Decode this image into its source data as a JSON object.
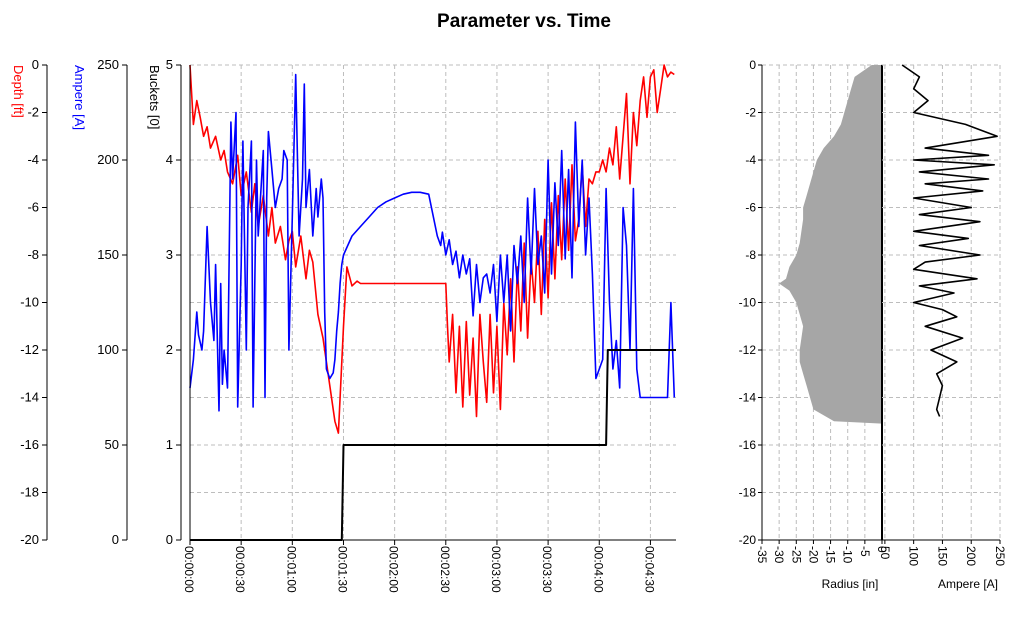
{
  "title": "Parameter vs. Time",
  "colors": {
    "depth": "#ff0000",
    "ampere": "#0000ff",
    "buckets": "#000000",
    "grid": "#bdbdbd",
    "radius_fill": "#a6a6a6"
  },
  "chart_data": [
    {
      "type": "line",
      "title": "Parameter vs. Time",
      "x_tick_labels": [
        "00:00:00",
        "00:00:30",
        "00:01:00",
        "00:01:30",
        "00:02:00",
        "00:02:30",
        "00:03:00",
        "00:03:30",
        "00:04:00",
        "00:04:30"
      ],
      "xlim_seconds": [
        0,
        285
      ],
      "grid": true,
      "axes": [
        {
          "id": "depth",
          "label": "Depth [ft]",
          "ylim": [
            -20,
            0
          ],
          "ticks": [
            "0",
            "-2",
            "-4",
            "-6",
            "-8",
            "-10",
            "-12",
            "-14",
            "-16",
            "-18",
            "-20"
          ]
        },
        {
          "id": "ampere",
          "label": "Ampere [A]",
          "ylim": [
            0,
            250
          ],
          "ticks": [
            "250",
            "200",
            "150",
            "100",
            "50",
            "0"
          ]
        },
        {
          "id": "buckets",
          "label": "Buckets [0]",
          "ylim": [
            0,
            5
          ],
          "ticks": [
            "5",
            "4",
            "3",
            "2",
            "1",
            "0"
          ]
        }
      ],
      "series": [
        {
          "axis": "depth",
          "t": [
            0,
            2,
            4,
            6,
            8,
            10,
            12,
            15,
            18,
            20,
            22,
            25,
            28,
            30,
            33,
            36,
            38,
            40,
            43,
            46,
            48,
            50,
            53,
            56,
            58,
            60,
            62,
            65,
            68,
            70,
            72,
            75,
            78,
            80,
            83,
            85,
            87,
            90,
            92,
            95,
            98,
            100,
            105,
            110,
            115,
            120,
            125,
            130,
            135,
            140,
            145,
            150,
            151,
            152,
            154,
            156,
            158,
            160,
            162,
            164,
            166,
            168,
            170,
            172,
            174,
            176,
            178,
            180,
            182,
            184,
            186,
            188,
            190,
            192,
            194,
            196,
            198,
            200,
            202,
            204,
            206,
            208,
            210,
            212,
            214,
            216,
            218,
            220,
            222,
            224,
            226,
            228,
            230,
            232,
            234,
            236,
            238,
            240,
            242,
            244,
            246,
            248,
            250,
            252,
            254,
            256,
            258,
            260,
            262,
            264,
            266,
            268,
            270,
            272,
            274,
            276,
            278,
            280,
            282,
            284
          ],
          "values": [
            0,
            -2.5,
            -1.5,
            -2.2,
            -3,
            -2.6,
            -3.5,
            -3,
            -4,
            -3.6,
            -4.5,
            -5,
            -3.8,
            -5.5,
            -4.5,
            -6.2,
            -5,
            -6.8,
            -5.5,
            -7.2,
            -6,
            -7.5,
            -6.8,
            -8.2,
            -7.4,
            -7,
            -8.5,
            -7.2,
            -9,
            -7.8,
            -8.3,
            -10.5,
            -11.5,
            -12.5,
            -14,
            -15,
            -15.5,
            -11,
            -8.5,
            -9.3,
            -9.1,
            -9.2,
            -9.2,
            -9.2,
            -9.2,
            -9.2,
            -9.2,
            -9.2,
            -9.2,
            -9.2,
            -9.2,
            -9.2,
            -11,
            -12.5,
            -10.5,
            -13.8,
            -11,
            -14.4,
            -10.8,
            -13.9,
            -11.5,
            -14.8,
            -10.5,
            -12.5,
            -14.2,
            -10.5,
            -13.8,
            -11,
            -14.5,
            -10,
            -12.2,
            -9,
            -12.5,
            -8.5,
            -11.2,
            -7.5,
            -11.5,
            -8.2,
            -10,
            -7,
            -10.5,
            -6.5,
            -9.8,
            -5.8,
            -9,
            -5.5,
            -8.2,
            -4.8,
            -7.8,
            -4.2,
            -7.4,
            -6.5,
            -4.2,
            -6.8,
            -4.8,
            -5,
            -4.5,
            -4.5,
            -4,
            -4.5,
            -3.5,
            -4.2,
            -2.6,
            -4.8,
            -3,
            -1.2,
            -5,
            -2,
            -3.4,
            -1.5,
            -0.5,
            -2.2,
            -0.5,
            -0.2,
            -2,
            -1,
            0,
            -0.5,
            -0.3,
            -0.4
          ]
        },
        {
          "axis": "ampere",
          "t": [
            0,
            2,
            4,
            5,
            7,
            8,
            10,
            12,
            14,
            15,
            17,
            18,
            19,
            20,
            22,
            24,
            25,
            27,
            28,
            30,
            31,
            33,
            34,
            36,
            37,
            39,
            40,
            41,
            43,
            44,
            45,
            46,
            48,
            50,
            52,
            54,
            55,
            57,
            58,
            60,
            62,
            64,
            65,
            66,
            67,
            68,
            70,
            72,
            74,
            75,
            77,
            78,
            79,
            80,
            82,
            84,
            85,
            86,
            87,
            88,
            89,
            90,
            95,
            100,
            105,
            110,
            115,
            120,
            125,
            130,
            135,
            140,
            145,
            147,
            148,
            150,
            152,
            154,
            156,
            158,
            160,
            162,
            164,
            166,
            168,
            170,
            172,
            174,
            176,
            178,
            180,
            182,
            184,
            186,
            188,
            190,
            192,
            194,
            196,
            198,
            200,
            202,
            204,
            206,
            208,
            210,
            212,
            214,
            216,
            218,
            220,
            222,
            224,
            226,
            228,
            230,
            232,
            234,
            236,
            238,
            240,
            242,
            244,
            246,
            248,
            250,
            252,
            254,
            256,
            258,
            260,
            262,
            264,
            266,
            268,
            270,
            272,
            274,
            276,
            278,
            280,
            282,
            284
          ],
          "values": [
            80,
            95,
            120,
            108,
            100,
            110,
            165,
            125,
            105,
            145,
            68,
            135,
            82,
            100,
            80,
            220,
            190,
            225,
            70,
            145,
            210,
            100,
            175,
            210,
            70,
            200,
            160,
            175,
            205,
            75,
            180,
            215,
            195,
            175,
            185,
            190,
            205,
            200,
            100,
            170,
            245,
            160,
            175,
            190,
            240,
            175,
            195,
            160,
            185,
            170,
            190,
            180,
            120,
            90,
            85,
            88,
            95,
            110,
            120,
            135,
            145,
            150,
            160,
            165,
            170,
            175,
            178,
            180,
            182,
            183,
            183,
            182,
            160,
            155,
            162,
            150,
            158,
            145,
            152,
            138,
            150,
            140,
            148,
            118,
            145,
            125,
            138,
            140,
            130,
            145,
            115,
            150,
            125,
            150,
            110,
            155,
            135,
            160,
            125,
            180,
            140,
            185,
            145,
            160,
            130,
            200,
            140,
            188,
            155,
            205,
            148,
            195,
            138,
            220,
            165,
            200,
            150,
            180,
            140,
            85,
            90,
            95,
            185,
            125,
            90,
            105,
            80,
            175,
            155,
            100,
            185,
            90,
            75,
            75,
            75,
            75,
            75,
            75,
            75,
            75,
            75,
            125,
            75
          ]
        },
        {
          "axis": "buckets",
          "t": [
            0,
            89,
            90,
            244,
            245,
            285
          ],
          "values": [
            0,
            0,
            1,
            1,
            2,
            2
          ]
        }
      ]
    },
    {
      "type": "area",
      "xlabel": "Radius [in]",
      "x_ticks": [
        "-35",
        "-30",
        "-25",
        "-20",
        "-15",
        "-10",
        "-5",
        "0"
      ],
      "xlim": [
        -35,
        0
      ],
      "ylim": [
        -20,
        0
      ],
      "y_ticks": [
        "0",
        "-2",
        "-4",
        "-6",
        "-8",
        "-10",
        "-12",
        "-14",
        "-16",
        "-18",
        "-20"
      ],
      "depth": [
        0,
        -0.5,
        -1,
        -1.5,
        -2,
        -2.5,
        -3,
        -3.5,
        -4,
        -4.5,
        -5,
        -5.5,
        -6,
        -6.5,
        -7,
        -7.5,
        -8,
        -8.5,
        -9,
        -9.2,
        -9.5,
        -10,
        -10.5,
        -11,
        -11.5,
        -12,
        -12.5,
        -13,
        -13.5,
        -14,
        -14.5,
        -15,
        -15.1
      ],
      "radius": [
        -3,
        -8,
        -9,
        -10,
        -11,
        -12,
        -14,
        -17,
        -19,
        -20,
        -21,
        -22,
        -23,
        -23,
        -23.5,
        -24,
        -25,
        -27,
        -28,
        -30,
        -27,
        -25,
        -24,
        -23,
        -23.5,
        -24,
        -24,
        -23,
        -22,
        -21,
        -20,
        -14,
        0
      ]
    },
    {
      "type": "line",
      "xlabel": "Ampere [A]",
      "x_ticks": [
        "50",
        "100",
        "150",
        "200",
        "250"
      ],
      "xlim": [
        45,
        250
      ],
      "ylim": [
        -20,
        0
      ],
      "depth": [
        0,
        -0.5,
        -1,
        -1.5,
        -2,
        -2.5,
        -3,
        -3.5,
        -3.8,
        -4,
        -4.2,
        -4.5,
        -4.8,
        -5,
        -5.3,
        -5.6,
        -6,
        -6.3,
        -6.6,
        -7,
        -7.3,
        -7.6,
        -8,
        -8.3,
        -8.6,
        -9,
        -9.3,
        -9.6,
        -10,
        -10.3,
        -10.6,
        -11,
        -11.5,
        -12,
        -12.5,
        -13,
        -13.5,
        -14,
        -14.5,
        -14.8
      ],
      "ampere": [
        80,
        110,
        100,
        125,
        100,
        190,
        245,
        120,
        230,
        100,
        240,
        110,
        230,
        120,
        220,
        100,
        200,
        110,
        215,
        100,
        195,
        110,
        215,
        120,
        100,
        210,
        110,
        170,
        100,
        150,
        175,
        120,
        185,
        130,
        175,
        140,
        150,
        145,
        140,
        145
      ]
    }
  ]
}
